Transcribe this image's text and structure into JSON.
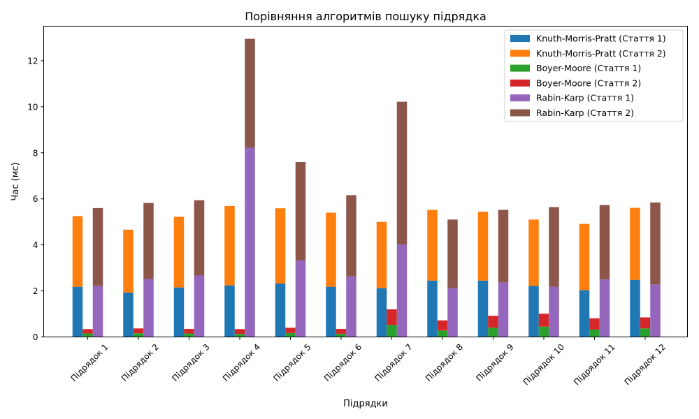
{
  "chart_data": {
    "type": "bar",
    "title": "Порівняння алгоритмів пошуку підрядка",
    "xlabel": "Підрядки",
    "ylabel": "Час (мс)",
    "ylim": [
      0,
      13.5
    ],
    "yticks": [
      0,
      2,
      4,
      6,
      8,
      10,
      12
    ],
    "grid": false,
    "legend_position": "top-right",
    "stacked_groups": true,
    "categories": [
      "Підрядок 1",
      "Підрядок 2",
      "Підрядок 3",
      "Підрядок 4",
      "Підрядок 5",
      "Підрядок 6",
      "Підрядок 7",
      "Підрядок 8",
      "Підрядок 9",
      "Підрядок 10",
      "Підрядок 11",
      "Підрядок 12"
    ],
    "series": [
      {
        "name": "Knuth-Morris-Pratt (Стаття 1)",
        "color": "#1f77b4",
        "group": 0,
        "values": [
          2.18,
          1.93,
          2.15,
          2.24,
          2.32,
          2.18,
          2.12,
          2.45,
          2.45,
          2.22,
          2.03,
          2.48
        ]
      },
      {
        "name": "Knuth-Morris-Pratt (Стаття 2)",
        "color": "#ff7f0e",
        "group": 0,
        "values": [
          3.07,
          2.73,
          3.07,
          3.45,
          3.27,
          3.22,
          2.88,
          3.07,
          2.99,
          2.88,
          2.88,
          3.13
        ]
      },
      {
        "name": "Boyer-Moore (Стаття 1)",
        "color": "#2ca02c",
        "group": 1,
        "values": [
          0.15,
          0.16,
          0.15,
          0.13,
          0.17,
          0.14,
          0.52,
          0.28,
          0.4,
          0.45,
          0.32,
          0.37
        ]
      },
      {
        "name": "Boyer-Moore (Стаття 2)",
        "color": "#d62728",
        "group": 1,
        "values": [
          0.19,
          0.21,
          0.2,
          0.21,
          0.23,
          0.21,
          0.68,
          0.44,
          0.52,
          0.56,
          0.49,
          0.48
        ]
      },
      {
        "name": "Rabin-Karp (Стаття 1)",
        "color": "#9467bd",
        "group": 2,
        "values": [
          2.22,
          2.52,
          2.67,
          8.22,
          3.32,
          2.63,
          4.02,
          2.12,
          2.37,
          2.18,
          2.5,
          2.28
        ]
      },
      {
        "name": "Rabin-Karp (Стаття 2)",
        "color": "#8c564b",
        "group": 2,
        "values": [
          3.38,
          3.3,
          3.27,
          4.73,
          4.28,
          3.53,
          6.2,
          2.98,
          3.15,
          3.46,
          3.23,
          3.56
        ]
      }
    ]
  }
}
